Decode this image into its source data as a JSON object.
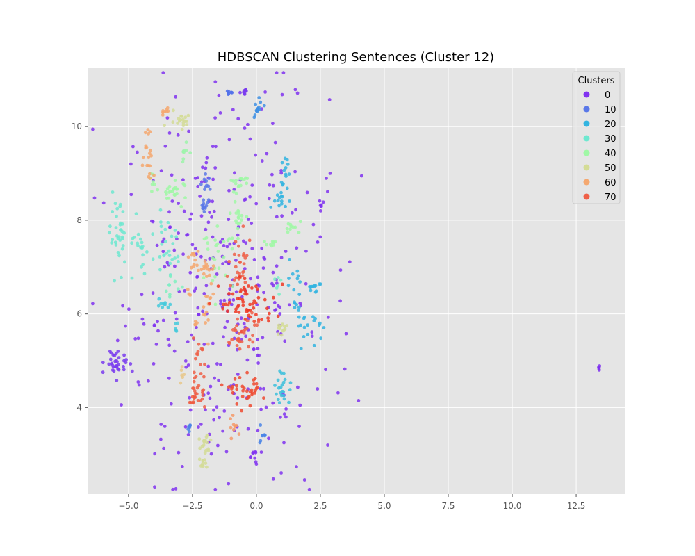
{
  "chart_data": {
    "type": "scatter",
    "title": "HDBSCAN Clustering Sentences (Cluster 12)",
    "xlabel": "",
    "ylabel": "",
    "xlim": [
      -6.6,
      14.4
    ],
    "ylim": [
      2.15,
      11.25
    ],
    "xticks": [
      -5.0,
      -2.5,
      0.0,
      2.5,
      5.0,
      7.5,
      10.0,
      12.5
    ],
    "xtick_labels": [
      "−5.0",
      "−2.5",
      "0.0",
      "2.5",
      "5.0",
      "7.5",
      "10.0",
      "12.5"
    ],
    "yticks": [
      4,
      6,
      8,
      10
    ],
    "ytick_labels": [
      "4",
      "6",
      "8",
      "10"
    ],
    "grid": true,
    "background": "#e5e5e5",
    "legend": {
      "title": "Clusters",
      "placement": "top-right",
      "entries": [
        {
          "label": "0",
          "color": "#8032f0"
        },
        {
          "label": "10",
          "color": "#5a78e8"
        },
        {
          "label": "20",
          "color": "#32b4e0"
        },
        {
          "label": "30",
          "color": "#6ee8d0"
        },
        {
          "label": "40",
          "color": "#a0f8a6"
        },
        {
          "label": "50",
          "color": "#d4dc96"
        },
        {
          "label": "60",
          "color": "#f4a870"
        },
        {
          "label": "70",
          "color": "#ef6048"
        }
      ]
    },
    "clusters": [
      {
        "color": "#8032f0",
        "x": -1.2,
        "y": 6.5,
        "sx": 2.0,
        "sy": 2.1,
        "n": 360
      },
      {
        "color": "#7a3cee",
        "x": -5.45,
        "y": 4.95,
        "sx": 0.22,
        "sy": 0.15,
        "n": 35
      },
      {
        "color": "#8032f0",
        "x": 13.4,
        "y": 4.88,
        "sx": 0.03,
        "sy": 0.03,
        "n": 5
      },
      {
        "color": "#8032f0",
        "x": 2.5,
        "y": 8.33,
        "sx": 0.05,
        "sy": 0.05,
        "n": 7
      },
      {
        "color": "#8032f0",
        "x": -0.1,
        "y": 2.95,
        "sx": 0.1,
        "sy": 0.1,
        "n": 10
      },
      {
        "color": "#7a3cee",
        "x": -0.5,
        "y": 10.75,
        "sx": 0.1,
        "sy": 0.05,
        "n": 10
      },
      {
        "color": "#5a78e8",
        "x": -2.05,
        "y": 8.3,
        "sx": 0.1,
        "sy": 0.08,
        "n": 12
      },
      {
        "color": "#5a78e8",
        "x": -1.95,
        "y": 8.75,
        "sx": 0.1,
        "sy": 0.08,
        "n": 10
      },
      {
        "color": "#5070ea",
        "x": -1.05,
        "y": 10.72,
        "sx": 0.1,
        "sy": 0.04,
        "n": 6
      },
      {
        "color": "#4090e4",
        "x": 0.0,
        "y": 10.4,
        "sx": 0.12,
        "sy": 0.15,
        "n": 14
      },
      {
        "color": "#4a84e6",
        "x": 0.25,
        "y": 3.4,
        "sx": 0.1,
        "sy": 0.1,
        "n": 8
      },
      {
        "color": "#4a84e6",
        "x": -2.6,
        "y": 3.6,
        "sx": 0.05,
        "sy": 0.05,
        "n": 6
      },
      {
        "color": "#32b4e0",
        "x": 1.08,
        "y": 8.95,
        "sx": 0.08,
        "sy": 0.18,
        "n": 14
      },
      {
        "color": "#32b4e0",
        "x": 0.9,
        "y": 8.4,
        "sx": 0.15,
        "sy": 0.1,
        "n": 12
      },
      {
        "color": "#32b4e0",
        "x": 1.5,
        "y": 6.5,
        "sx": 0.12,
        "sy": 0.3,
        "n": 14
      },
      {
        "color": "#32b4e0",
        "x": 2.3,
        "y": 6.6,
        "sx": 0.15,
        "sy": 0.1,
        "n": 12
      },
      {
        "color": "#32b4e0",
        "x": 2.1,
        "y": 5.8,
        "sx": 0.3,
        "sy": 0.18,
        "n": 20
      },
      {
        "color": "#3cc0dc",
        "x": 1.05,
        "y": 4.4,
        "sx": 0.18,
        "sy": 0.18,
        "n": 22
      },
      {
        "color": "#46cadc",
        "x": -3.6,
        "y": 6.2,
        "sx": 0.15,
        "sy": 0.08,
        "n": 10
      },
      {
        "color": "#46cadc",
        "x": -3.15,
        "y": 5.7,
        "sx": 0.05,
        "sy": 0.08,
        "n": 5
      },
      {
        "color": "#6ee8d0",
        "x": -5.4,
        "y": 7.6,
        "sx": 0.15,
        "sy": 0.35,
        "n": 34
      },
      {
        "color": "#6ee8d0",
        "x": -4.5,
        "y": 7.3,
        "sx": 0.35,
        "sy": 0.3,
        "n": 24
      },
      {
        "color": "#6ee8d0",
        "x": -3.5,
        "y": 7.3,
        "sx": 0.25,
        "sy": 0.35,
        "n": 24
      },
      {
        "color": "#80f0c0",
        "x": -3.3,
        "y": 6.6,
        "sx": 0.2,
        "sy": 0.1,
        "n": 8
      },
      {
        "color": "#78eec6",
        "x": 0.75,
        "y": 6.6,
        "sx": 0.1,
        "sy": 0.1,
        "n": 6
      },
      {
        "color": "#a0f8a6",
        "x": -3.2,
        "y": 8.6,
        "sx": 0.25,
        "sy": 0.12,
        "n": 22
      },
      {
        "color": "#a0f8a6",
        "x": -0.7,
        "y": 8.8,
        "sx": 0.2,
        "sy": 0.12,
        "n": 16
      },
      {
        "color": "#a0f8a6",
        "x": -0.7,
        "y": 8.1,
        "sx": 0.15,
        "sy": 0.2,
        "n": 18
      },
      {
        "color": "#a0f8a6",
        "x": -1.5,
        "y": 7.2,
        "sx": 0.3,
        "sy": 0.3,
        "n": 24
      },
      {
        "color": "#a0f8a6",
        "x": 1.4,
        "y": 7.85,
        "sx": 0.2,
        "sy": 0.07,
        "n": 10
      },
      {
        "color": "#a0f8a6",
        "x": 0.6,
        "y": 7.5,
        "sx": 0.12,
        "sy": 0.06,
        "n": 8
      },
      {
        "color": "#a0f8a6",
        "x": -4.0,
        "y": 8.8,
        "sx": 0.12,
        "sy": 0.1,
        "n": 8
      },
      {
        "color": "#9ef4aa",
        "x": -2.8,
        "y": 9.4,
        "sx": 0.1,
        "sy": 0.15,
        "n": 8
      },
      {
        "color": "#d4dc96",
        "x": -3.0,
        "y": 10.2,
        "sx": 0.25,
        "sy": 0.1,
        "n": 18
      },
      {
        "color": "#d4dc96",
        "x": 1.0,
        "y": 5.65,
        "sx": 0.15,
        "sy": 0.1,
        "n": 14
      },
      {
        "color": "#d4dc96",
        "x": -1.95,
        "y": 3.2,
        "sx": 0.15,
        "sy": 0.15,
        "n": 16
      },
      {
        "color": "#d4dc96",
        "x": -2.05,
        "y": 2.8,
        "sx": 0.1,
        "sy": 0.1,
        "n": 10
      },
      {
        "color": "#e8c88c",
        "x": -2.95,
        "y": 4.7,
        "sx": 0.07,
        "sy": 0.1,
        "n": 6
      },
      {
        "color": "#f4a870",
        "x": -4.2,
        "y": 9.5,
        "sx": 0.1,
        "sy": 0.3,
        "n": 20
      },
      {
        "color": "#f4a870",
        "x": -3.6,
        "y": 10.35,
        "sx": 0.1,
        "sy": 0.08,
        "n": 8
      },
      {
        "color": "#f4a870",
        "x": -2.0,
        "y": 7.0,
        "sx": 0.25,
        "sy": 0.12,
        "n": 18
      },
      {
        "color": "#f4a870",
        "x": -2.5,
        "y": 7.2,
        "sx": 0.1,
        "sy": 0.1,
        "n": 8
      },
      {
        "color": "#f4a870",
        "x": -1.9,
        "y": 6.2,
        "sx": 0.1,
        "sy": 0.25,
        "n": 14
      },
      {
        "color": "#f49a6a",
        "x": -0.85,
        "y": 3.6,
        "sx": 0.1,
        "sy": 0.15,
        "n": 10
      },
      {
        "color": "#f4a870",
        "x": -2.4,
        "y": 5.8,
        "sx": 0.05,
        "sy": 0.05,
        "n": 4
      },
      {
        "color": "#f4a870",
        "x": -2.65,
        "y": 6.45,
        "sx": 0.05,
        "sy": 0.05,
        "n": 4
      },
      {
        "color": "#ef6048",
        "x": -0.6,
        "y": 7.05,
        "sx": 0.25,
        "sy": 0.3,
        "n": 30
      },
      {
        "color": "#ee3a24",
        "x": -0.35,
        "y": 6.2,
        "sx": 0.55,
        "sy": 0.25,
        "n": 60
      },
      {
        "color": "#ef6048",
        "x": -0.75,
        "y": 5.5,
        "sx": 0.2,
        "sy": 0.3,
        "n": 20
      },
      {
        "color": "#ef6048",
        "x": -0.15,
        "y": 5.6,
        "sx": 0.15,
        "sy": 0.2,
        "n": 12
      },
      {
        "color": "#ee4a30",
        "x": -0.3,
        "y": 4.35,
        "sx": 0.35,
        "sy": 0.15,
        "n": 34
      },
      {
        "color": "#ef6048",
        "x": -2.3,
        "y": 4.5,
        "sx": 0.15,
        "sy": 0.2,
        "n": 22
      },
      {
        "color": "#ef5a40",
        "x": -2.45,
        "y": 4.15,
        "sx": 0.1,
        "sy": 0.05,
        "n": 8
      },
      {
        "color": "#ef6048",
        "x": -2.3,
        "y": 5.2,
        "sx": 0.15,
        "sy": 0.15,
        "n": 10
      }
    ]
  }
}
